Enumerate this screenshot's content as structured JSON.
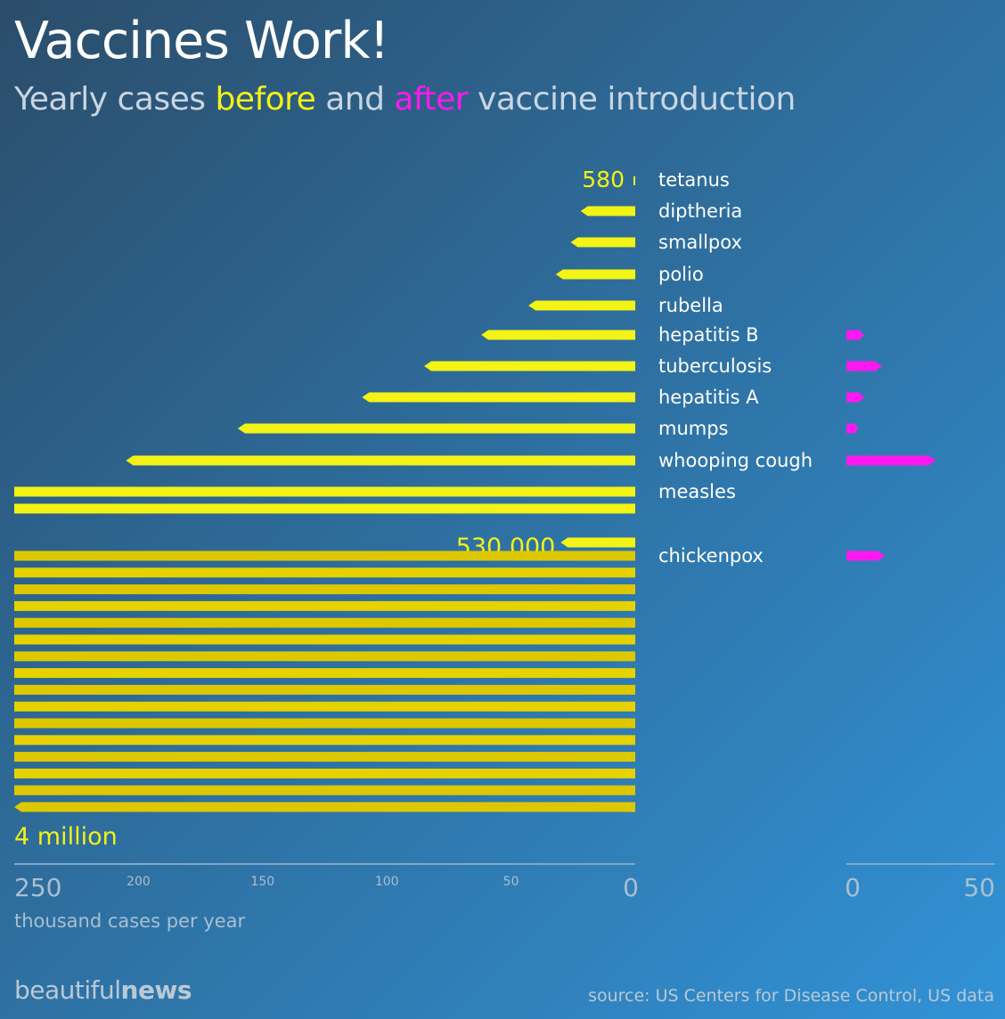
{
  "header": {
    "title": "Vaccines Work!",
    "subtitle_prefix": "Yearly cases ",
    "subtitle_before": "before",
    "subtitle_mid": " and ",
    "subtitle_after": "after",
    "subtitle_suffix": " vaccine introduction"
  },
  "chart_data": {
    "type": "bar",
    "title": "Vaccines Work!",
    "subtitle": "Yearly cases before and after vaccine introduction",
    "xlabel": "thousand cases per year",
    "unit": "thousand cases per year",
    "colors": {
      "before": "#f3f315",
      "after": "#ff18f0",
      "axis": "#7fa8c8"
    },
    "before_axis": {
      "ticks_major": [
        "250",
        "0"
      ],
      "ticks_minor": [
        "200",
        "150",
        "100",
        "50"
      ],
      "range": [
        250,
        0
      ]
    },
    "after_axis": {
      "ticks": [
        "0",
        "50"
      ],
      "range": [
        0,
        50
      ]
    },
    "categories": [
      "tetanus",
      "diptheria",
      "smallpox",
      "polio",
      "rubella",
      "hepatitis B",
      "tuberculosis",
      "hepatitis A",
      "mumps",
      "whooping cough",
      "measles",
      "chickenpox"
    ],
    "series": [
      {
        "name": "before",
        "values": [
          0.58,
          22,
          26,
          32,
          43,
          62,
          85,
          110,
          160,
          205,
          530,
          4000
        ]
      },
      {
        "name": "after",
        "values": [
          0,
          0,
          0,
          0,
          0,
          6,
          12,
          6,
          4,
          30,
          0,
          13
        ]
      }
    ],
    "annotations": {
      "tetanus_before": "580",
      "measles_before": "530,000",
      "chickenpox_before": "4 million"
    }
  },
  "footer": {
    "brand_light": "beautiful",
    "brand_bold": "news",
    "source": "source: US Centers for Disease Control, US data"
  }
}
